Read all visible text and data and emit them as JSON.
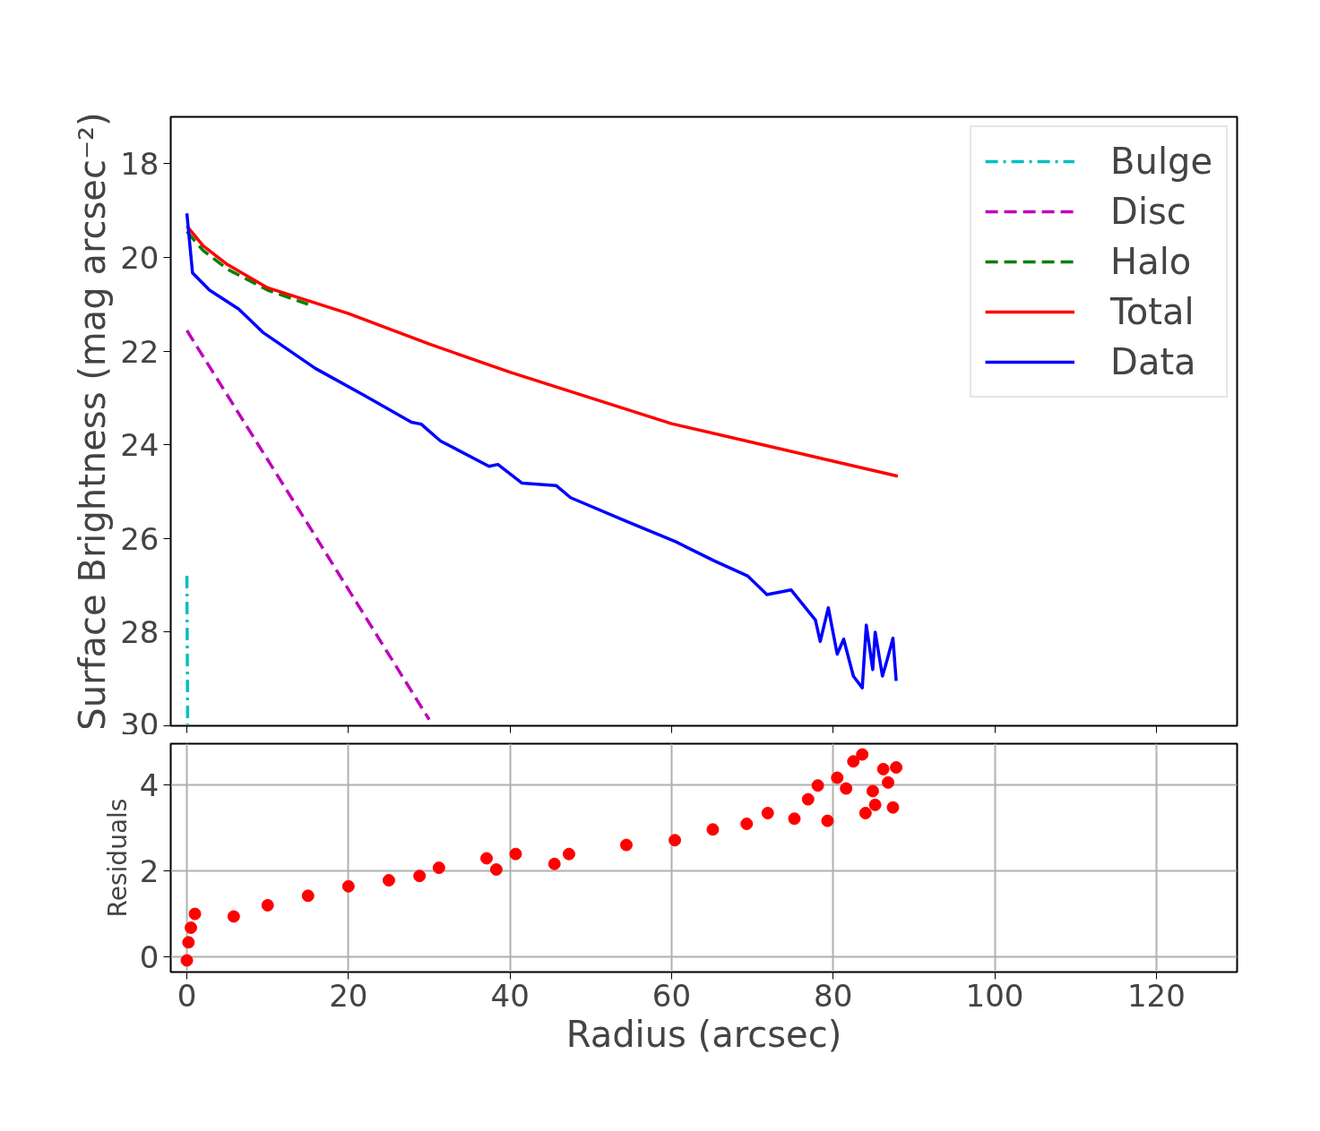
{
  "chart_data": [
    {
      "type": "line",
      "ylabel": "Surface Brightness (mag arcsec⁻²)",
      "xlim": [
        -2,
        130
      ],
      "xticks": [
        0,
        20,
        40,
        60,
        80,
        100,
        120
      ],
      "ylim": [
        30,
        17
      ],
      "yticks": [
        18,
        20,
        22,
        24,
        26,
        28,
        30
      ],
      "tick_labels": "y",
      "grid": false,
      "legend": "top right",
      "series": [
        {
          "name": "Bulge",
          "color": "#00bfbf",
          "line_style": "dashdot",
          "x": [
            0,
            0.1
          ],
          "values": [
            26.8,
            30
          ]
        },
        {
          "name": "Disc",
          "color": "#bf00bf",
          "line_style": "dashed",
          "x": [
            0,
            15,
            30
          ],
          "values": [
            21.56,
            25.7,
            29.87
          ]
        },
        {
          "name": "Halo",
          "color": "#008000",
          "line_style": "dashed",
          "x": [
            0,
            2,
            5,
            10,
            15
          ],
          "values": [
            19.45,
            19.85,
            20.25,
            20.7,
            21.0
          ]
        },
        {
          "name": "Total",
          "color": "#ff0000",
          "line_style": "solid",
          "x": [
            0,
            2,
            5,
            10,
            20,
            30,
            40,
            50,
            60,
            70,
            80,
            88
          ],
          "values": [
            19.33,
            19.75,
            20.15,
            20.65,
            21.2,
            21.85,
            22.45,
            23.0,
            23.55,
            23.95,
            24.35,
            24.67
          ]
        },
        {
          "name": "Data",
          "color": "#0000ff",
          "line_style": "solid",
          "x": [
            0,
            0.7,
            2.8,
            6.4,
            9.4,
            15.9,
            21.9,
            27.8,
            29,
            31.4,
            37.4,
            38.5,
            41.5,
            45.7,
            47.5,
            54.6,
            60.5,
            65.3,
            69.4,
            71.8,
            74.8,
            77.8,
            78.4,
            79.4,
            80.5,
            81.3,
            82.5,
            83.6,
            84.1,
            84.9,
            85.2,
            86.1,
            86.7,
            87.4,
            87.8
          ],
          "values": [
            19.06,
            20.33,
            20.7,
            21.1,
            21.6,
            22.37,
            22.94,
            23.52,
            23.56,
            23.92,
            24.46,
            24.42,
            24.82,
            24.87,
            25.13,
            25.65,
            26.07,
            26.48,
            26.8,
            27.2,
            27.1,
            27.74,
            28.2,
            27.48,
            28.47,
            28.15,
            28.94,
            29.19,
            27.85,
            28.8,
            28.0,
            28.94,
            28.58,
            28.13,
            29.04
          ]
        }
      ]
    },
    {
      "type": "scatter",
      "xlabel": "Radius (arcsec)",
      "ylabel": "Residuals",
      "xlim": [
        -2,
        130
      ],
      "xticks": [
        0,
        20,
        40,
        60,
        80,
        100,
        120
      ],
      "ylim": [
        -0.35,
        4.95
      ],
      "yticks": [
        0,
        2,
        4
      ],
      "grid": true,
      "marker": "circle",
      "legend": false,
      "series": [
        {
          "color": "#ff0000",
          "x": [
            0,
            0.2,
            0.5,
            1,
            5.8,
            10,
            15,
            20,
            25,
            28.8,
            31.2,
            37.1,
            38.3,
            40.7,
            45.5,
            47.3,
            54.4,
            60.4,
            65.1,
            69.3,
            71.9,
            75.2,
            76.9,
            78.1,
            79.3,
            80.5,
            81.6,
            82.5,
            83.6,
            84,
            84.9,
            85.2,
            86.2,
            86.8,
            87.4,
            87.8
          ],
          "values": [
            -0.08,
            0.34,
            0.68,
            1.0,
            0.94,
            1.2,
            1.42,
            1.64,
            1.78,
            1.88,
            2.07,
            2.29,
            2.03,
            2.39,
            2.16,
            2.39,
            2.6,
            2.71,
            2.96,
            3.09,
            3.34,
            3.21,
            3.66,
            3.98,
            3.16,
            4.16,
            3.91,
            4.54,
            4.7,
            3.34,
            3.85,
            3.53,
            4.36,
            4.05,
            3.47,
            4.4
          ]
        }
      ]
    }
  ]
}
